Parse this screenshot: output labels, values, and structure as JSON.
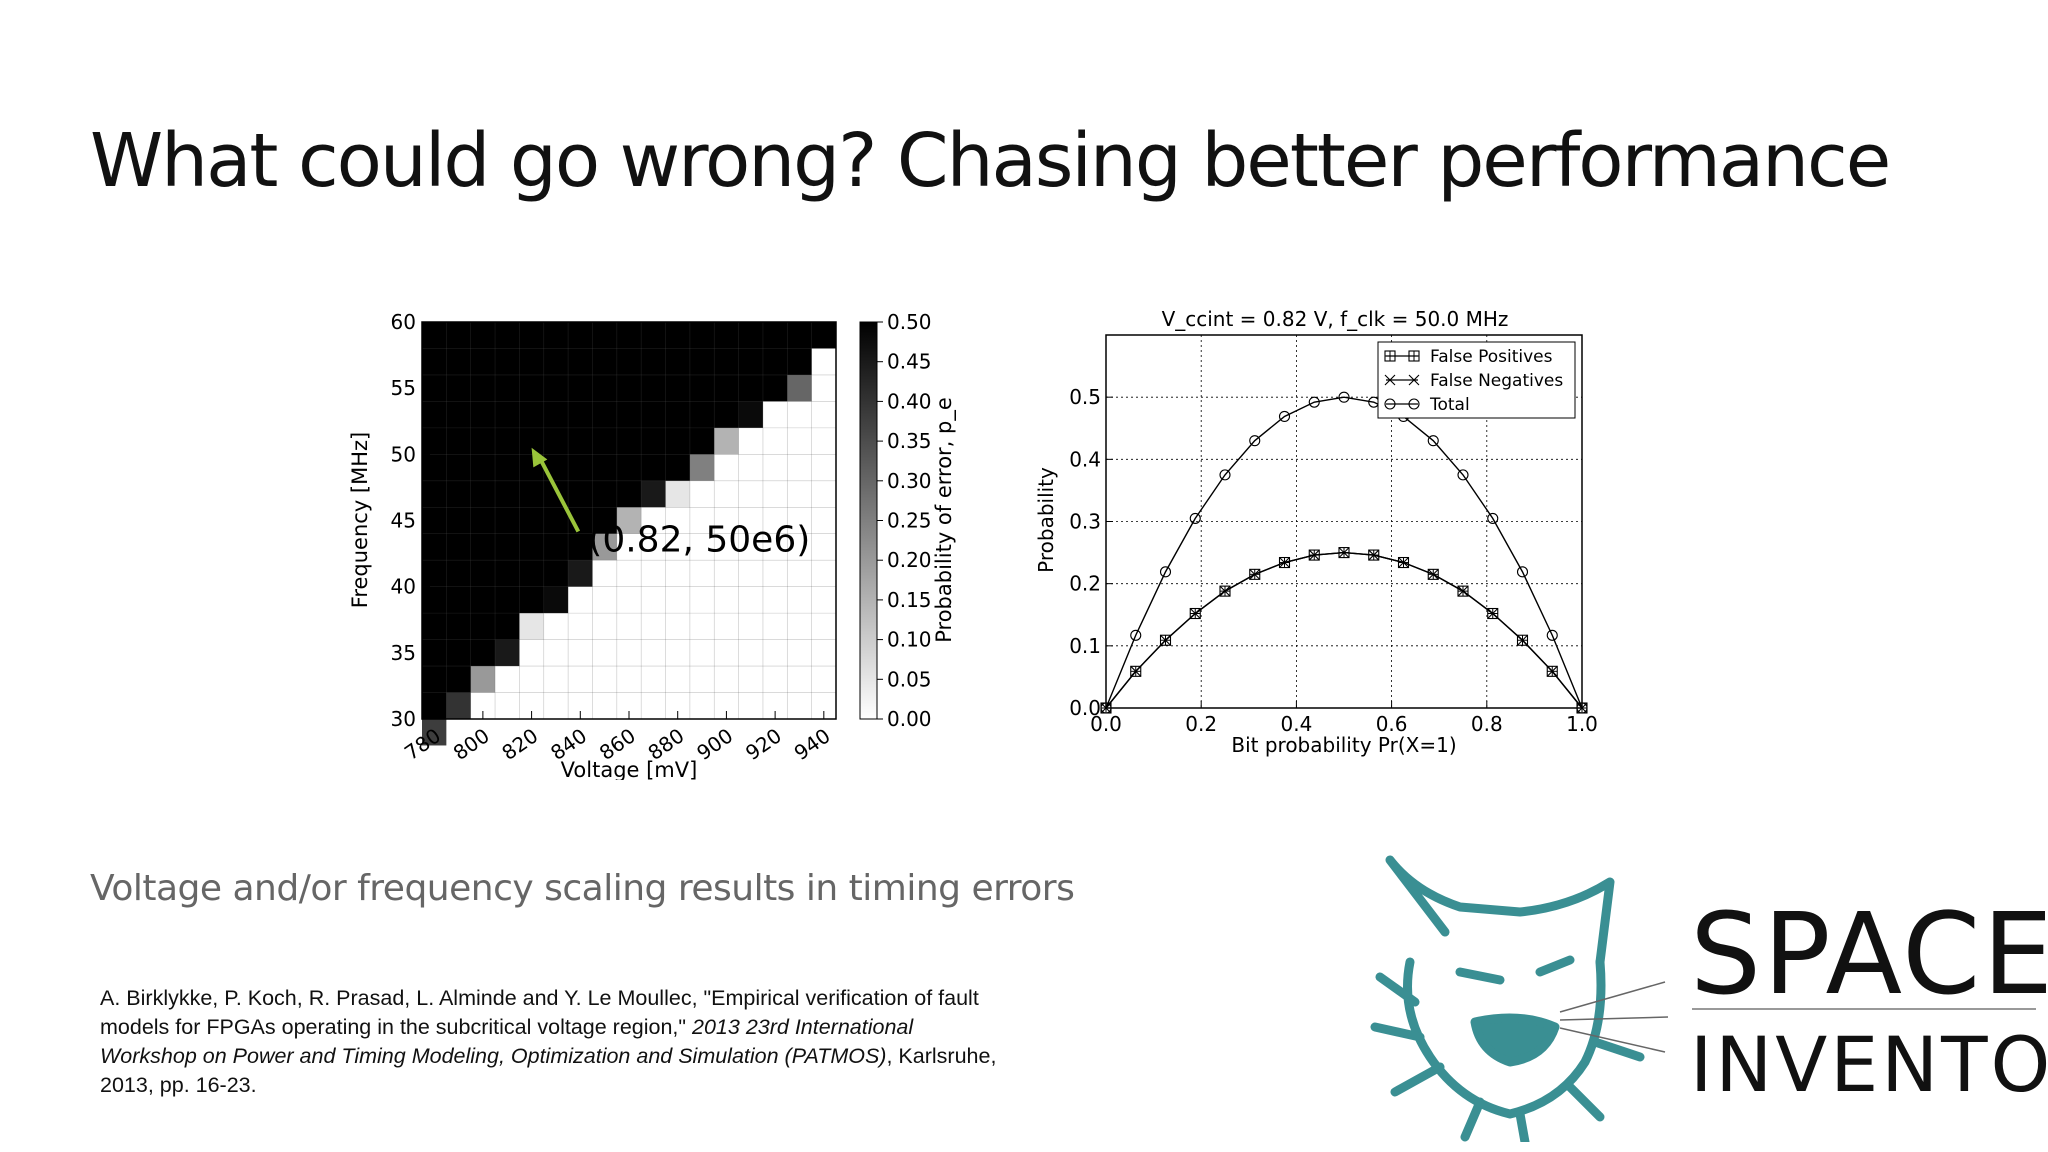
{
  "slide": {
    "title": "What could go wrong? Chasing better performance",
    "subtitle": "Voltage and/or frequency scaling results in timing errors",
    "citation": {
      "authors": "A. Birklykke, P. Koch, R. Prasad, L. Alminde and Y. Le Moullec, \"Empirical verification of fault models for FPGAs operating in the subcritical voltage region,\" ",
      "venue": "2013 23rd International Workshop on Power and Timing Modeling, Optimization and Simulation (PATMOS)",
      "tail": ", Karlsruhe, 2013, pp. 16-23."
    },
    "logo": {
      "line1": "SPACE",
      "line2": "INVENTOR",
      "color": "#3a8f93",
      "icon": "lynx-head-icon"
    }
  },
  "chart_data": [
    {
      "type": "heatmap",
      "title": "",
      "xlabel": "Voltage [mV]",
      "ylabel": "Frequency [MHz]",
      "xlim": [
        775,
        945
      ],
      "ylim": [
        30,
        60
      ],
      "xticks": [
        "780",
        "800",
        "820",
        "840",
        "860",
        "880",
        "900",
        "920",
        "940"
      ],
      "yticks": [
        "30",
        "35",
        "40",
        "45",
        "50",
        "55",
        "60"
      ],
      "colorbar": {
        "label": "Probability of error, p_e",
        "range": [
          0,
          0.5
        ],
        "ticks": [
          "0.00",
          "0.05",
          "0.10",
          "0.15",
          "0.20",
          "0.25",
          "0.30",
          "0.35",
          "0.40",
          "0.45",
          "0.50"
        ],
        "colormap": "gray_r"
      },
      "grid": "on",
      "x_start": 775,
      "x_step": 10,
      "y_start": 60,
      "y_step": -2,
      "rows": [
        [
          0.5,
          0.5,
          0.5,
          0.5,
          0.5,
          0.5,
          0.5,
          0.5,
          0.5,
          0.5,
          0.5,
          0.5,
          0.5,
          0.5,
          0.5,
          0.5,
          0.5
        ],
        [
          0.5,
          0.5,
          0.5,
          0.5,
          0.5,
          0.5,
          0.5,
          0.5,
          0.5,
          0.5,
          0.5,
          0.5,
          0.5,
          0.5,
          0.5,
          0.5,
          0.0
        ],
        [
          0.5,
          0.5,
          0.5,
          0.5,
          0.5,
          0.5,
          0.5,
          0.5,
          0.5,
          0.5,
          0.5,
          0.5,
          0.5,
          0.5,
          0.5,
          0.3,
          0.0
        ],
        [
          0.5,
          0.5,
          0.5,
          0.5,
          0.5,
          0.5,
          0.5,
          0.5,
          0.5,
          0.5,
          0.5,
          0.5,
          0.5,
          0.48,
          0.0,
          0.0,
          0.0
        ],
        [
          0.5,
          0.5,
          0.5,
          0.5,
          0.5,
          0.5,
          0.5,
          0.5,
          0.5,
          0.5,
          0.5,
          0.5,
          0.15,
          0.0,
          0.0,
          0.0,
          0.0
        ],
        [
          0.5,
          0.5,
          0.5,
          0.5,
          0.5,
          0.5,
          0.5,
          0.5,
          0.5,
          0.5,
          0.5,
          0.25,
          0.0,
          0.0,
          0.0,
          0.0,
          0.0
        ],
        [
          0.5,
          0.5,
          0.5,
          0.5,
          0.5,
          0.5,
          0.5,
          0.5,
          0.5,
          0.45,
          0.05,
          0.0,
          0.0,
          0.0,
          0.0,
          0.0,
          0.0
        ],
        [
          0.5,
          0.5,
          0.5,
          0.5,
          0.5,
          0.5,
          0.5,
          0.5,
          0.15,
          0.0,
          0.0,
          0.0,
          0.0,
          0.0,
          0.0,
          0.0,
          0.0
        ],
        [
          0.5,
          0.5,
          0.5,
          0.5,
          0.5,
          0.5,
          0.5,
          0.2,
          0.0,
          0.0,
          0.0,
          0.0,
          0.0,
          0.0,
          0.0,
          0.0,
          0.0
        ],
        [
          0.5,
          0.5,
          0.5,
          0.5,
          0.5,
          0.5,
          0.45,
          0.0,
          0.0,
          0.0,
          0.0,
          0.0,
          0.0,
          0.0,
          0.0,
          0.0,
          0.0
        ],
        [
          0.5,
          0.5,
          0.5,
          0.5,
          0.5,
          0.48,
          0.0,
          0.0,
          0.0,
          0.0,
          0.0,
          0.0,
          0.0,
          0.0,
          0.0,
          0.0,
          0.0
        ],
        [
          0.5,
          0.5,
          0.5,
          0.5,
          0.05,
          0.0,
          0.0,
          0.0,
          0.0,
          0.0,
          0.0,
          0.0,
          0.0,
          0.0,
          0.0,
          0.0,
          0.0
        ],
        [
          0.5,
          0.5,
          0.5,
          0.45,
          0.0,
          0.0,
          0.0,
          0.0,
          0.0,
          0.0,
          0.0,
          0.0,
          0.0,
          0.0,
          0.0,
          0.0,
          0.0
        ],
        [
          0.5,
          0.5,
          0.2,
          0.0,
          0.0,
          0.0,
          0.0,
          0.0,
          0.0,
          0.0,
          0.0,
          0.0,
          0.0,
          0.0,
          0.0,
          0.0,
          0.0
        ],
        [
          0.5,
          0.4,
          0.0,
          0.0,
          0.0,
          0.0,
          0.0,
          0.0,
          0.0,
          0.0,
          0.0,
          0.0,
          0.0,
          0.0,
          0.0,
          0.0,
          0.0
        ],
        [
          0.38,
          0.0,
          0.0,
          0.0,
          0.0,
          0.0,
          0.0,
          0.0,
          0.0,
          0.0,
          0.0,
          0.0,
          0.0,
          0.0,
          0.0,
          0.0,
          0.0
        ],
        [
          0.0,
          0.0,
          0.0,
          0.0,
          0.0,
          0.0,
          0.0,
          0.0,
          0.0,
          0.0,
          0.0,
          0.0,
          0.0,
          0.0,
          0.0,
          0.0,
          0.0
        ],
        [
          0.0,
          0.0,
          0.0,
          0.0,
          0.0,
          0.0,
          0.0,
          0.0,
          0.0,
          0.0,
          0.0,
          0.0,
          0.0,
          0.0,
          0.0,
          0.0,
          0.0
        ],
        [
          0.0,
          0.0,
          0.0,
          0.0,
          0.0,
          0.0,
          0.0,
          0.0,
          0.0,
          0.0,
          0.0,
          0.0,
          0.0,
          0.0,
          0.0,
          0.0,
          0.0
        ],
        [
          0.0,
          0.0,
          0.0,
          0.0,
          0.0,
          0.0,
          0.0,
          0.0,
          0.0,
          0.0,
          0.0,
          0.0,
          0.0,
          0.0,
          0.0,
          0.0,
          0.0
        ],
        [
          0.0,
          0.0,
          0.0,
          0.0,
          0.0,
          0.0,
          0.0,
          0.0,
          0.0,
          0.0,
          0.0,
          0.0,
          0.0,
          0.0,
          0.0,
          0.0,
          0.0
        ],
        [
          0.0,
          0.0,
          0.0,
          0.0,
          0.0,
          0.0,
          0.0,
          0.0,
          0.0,
          0.0,
          0.0,
          0.0,
          0.0,
          0.0,
          0.0,
          0.0,
          0.0
        ],
        [
          0.0,
          0.0,
          0.0,
          0.0,
          0.0,
          0.0,
          0.0,
          0.0,
          0.0,
          0.0,
          0.0,
          0.0,
          0.0,
          0.0,
          0.0,
          0.0,
          0.0
        ],
        [
          0.0,
          0.0,
          0.0,
          0.0,
          0.0,
          0.0,
          0.0,
          0.0,
          0.0,
          0.0,
          0.0,
          0.0,
          0.0,
          0.0,
          0.0,
          0.0,
          0.0
        ],
        [
          0.0,
          0.0,
          0.0,
          0.0,
          0.0,
          0.0,
          0.0,
          0.0,
          0.0,
          0.0,
          0.0,
          0.0,
          0.0,
          0.0,
          0.0,
          0.0,
          0.0
        ],
        [
          0.0,
          0.0,
          0.0,
          0.0,
          0.0,
          0.0,
          0.0,
          0.0,
          0.0,
          0.0,
          0.0,
          0.0,
          0.0,
          0.0,
          0.0,
          0.0,
          0.0
        ]
      ],
      "annotation": {
        "text": "(0.82, 50e6)",
        "point": [
          820,
          50.5
        ],
        "text_at": [
          840,
          45
        ],
        "arrow_color": "#9ac43a"
      }
    },
    {
      "type": "line",
      "title": "V_ccint = 0.82 V, f_clk = 50.0 MHz",
      "xlabel": "Bit probability Pr(X=1)",
      "ylabel": "Probability",
      "xlim": [
        0.0,
        1.0
      ],
      "ylim": [
        0.0,
        0.6
      ],
      "xticks": [
        "0.0",
        "0.2",
        "0.4",
        "0.6",
        "0.8",
        "1.0"
      ],
      "yticks": [
        "0.0",
        "0.1",
        "0.2",
        "0.3",
        "0.4",
        "0.5"
      ],
      "grid": "on",
      "legend": "top-right",
      "x": [
        0.0,
        0.0625,
        0.125,
        0.1875,
        0.25,
        0.3125,
        0.375,
        0.4375,
        0.5,
        0.5625,
        0.625,
        0.6875,
        0.75,
        0.8125,
        0.875,
        0.9375,
        1.0
      ],
      "series": [
        {
          "name": "False Positives",
          "marker": "square-plus",
          "values": [
            0.0,
            0.059,
            0.109,
            0.152,
            0.188,
            0.215,
            0.234,
            0.246,
            0.25,
            0.246,
            0.234,
            0.215,
            0.188,
            0.152,
            0.109,
            0.059,
            0.0
          ]
        },
        {
          "name": "False Negatives",
          "marker": "x",
          "values": [
            0.0,
            0.059,
            0.109,
            0.152,
            0.188,
            0.215,
            0.234,
            0.246,
            0.25,
            0.246,
            0.234,
            0.215,
            0.188,
            0.152,
            0.109,
            0.059,
            0.0
          ]
        },
        {
          "name": "Total",
          "marker": "circle",
          "values": [
            0.0,
            0.117,
            0.219,
            0.305,
            0.375,
            0.43,
            0.469,
            0.492,
            0.5,
            0.492,
            0.469,
            0.43,
            0.375,
            0.305,
            0.219,
            0.117,
            0.0
          ]
        }
      ]
    }
  ]
}
